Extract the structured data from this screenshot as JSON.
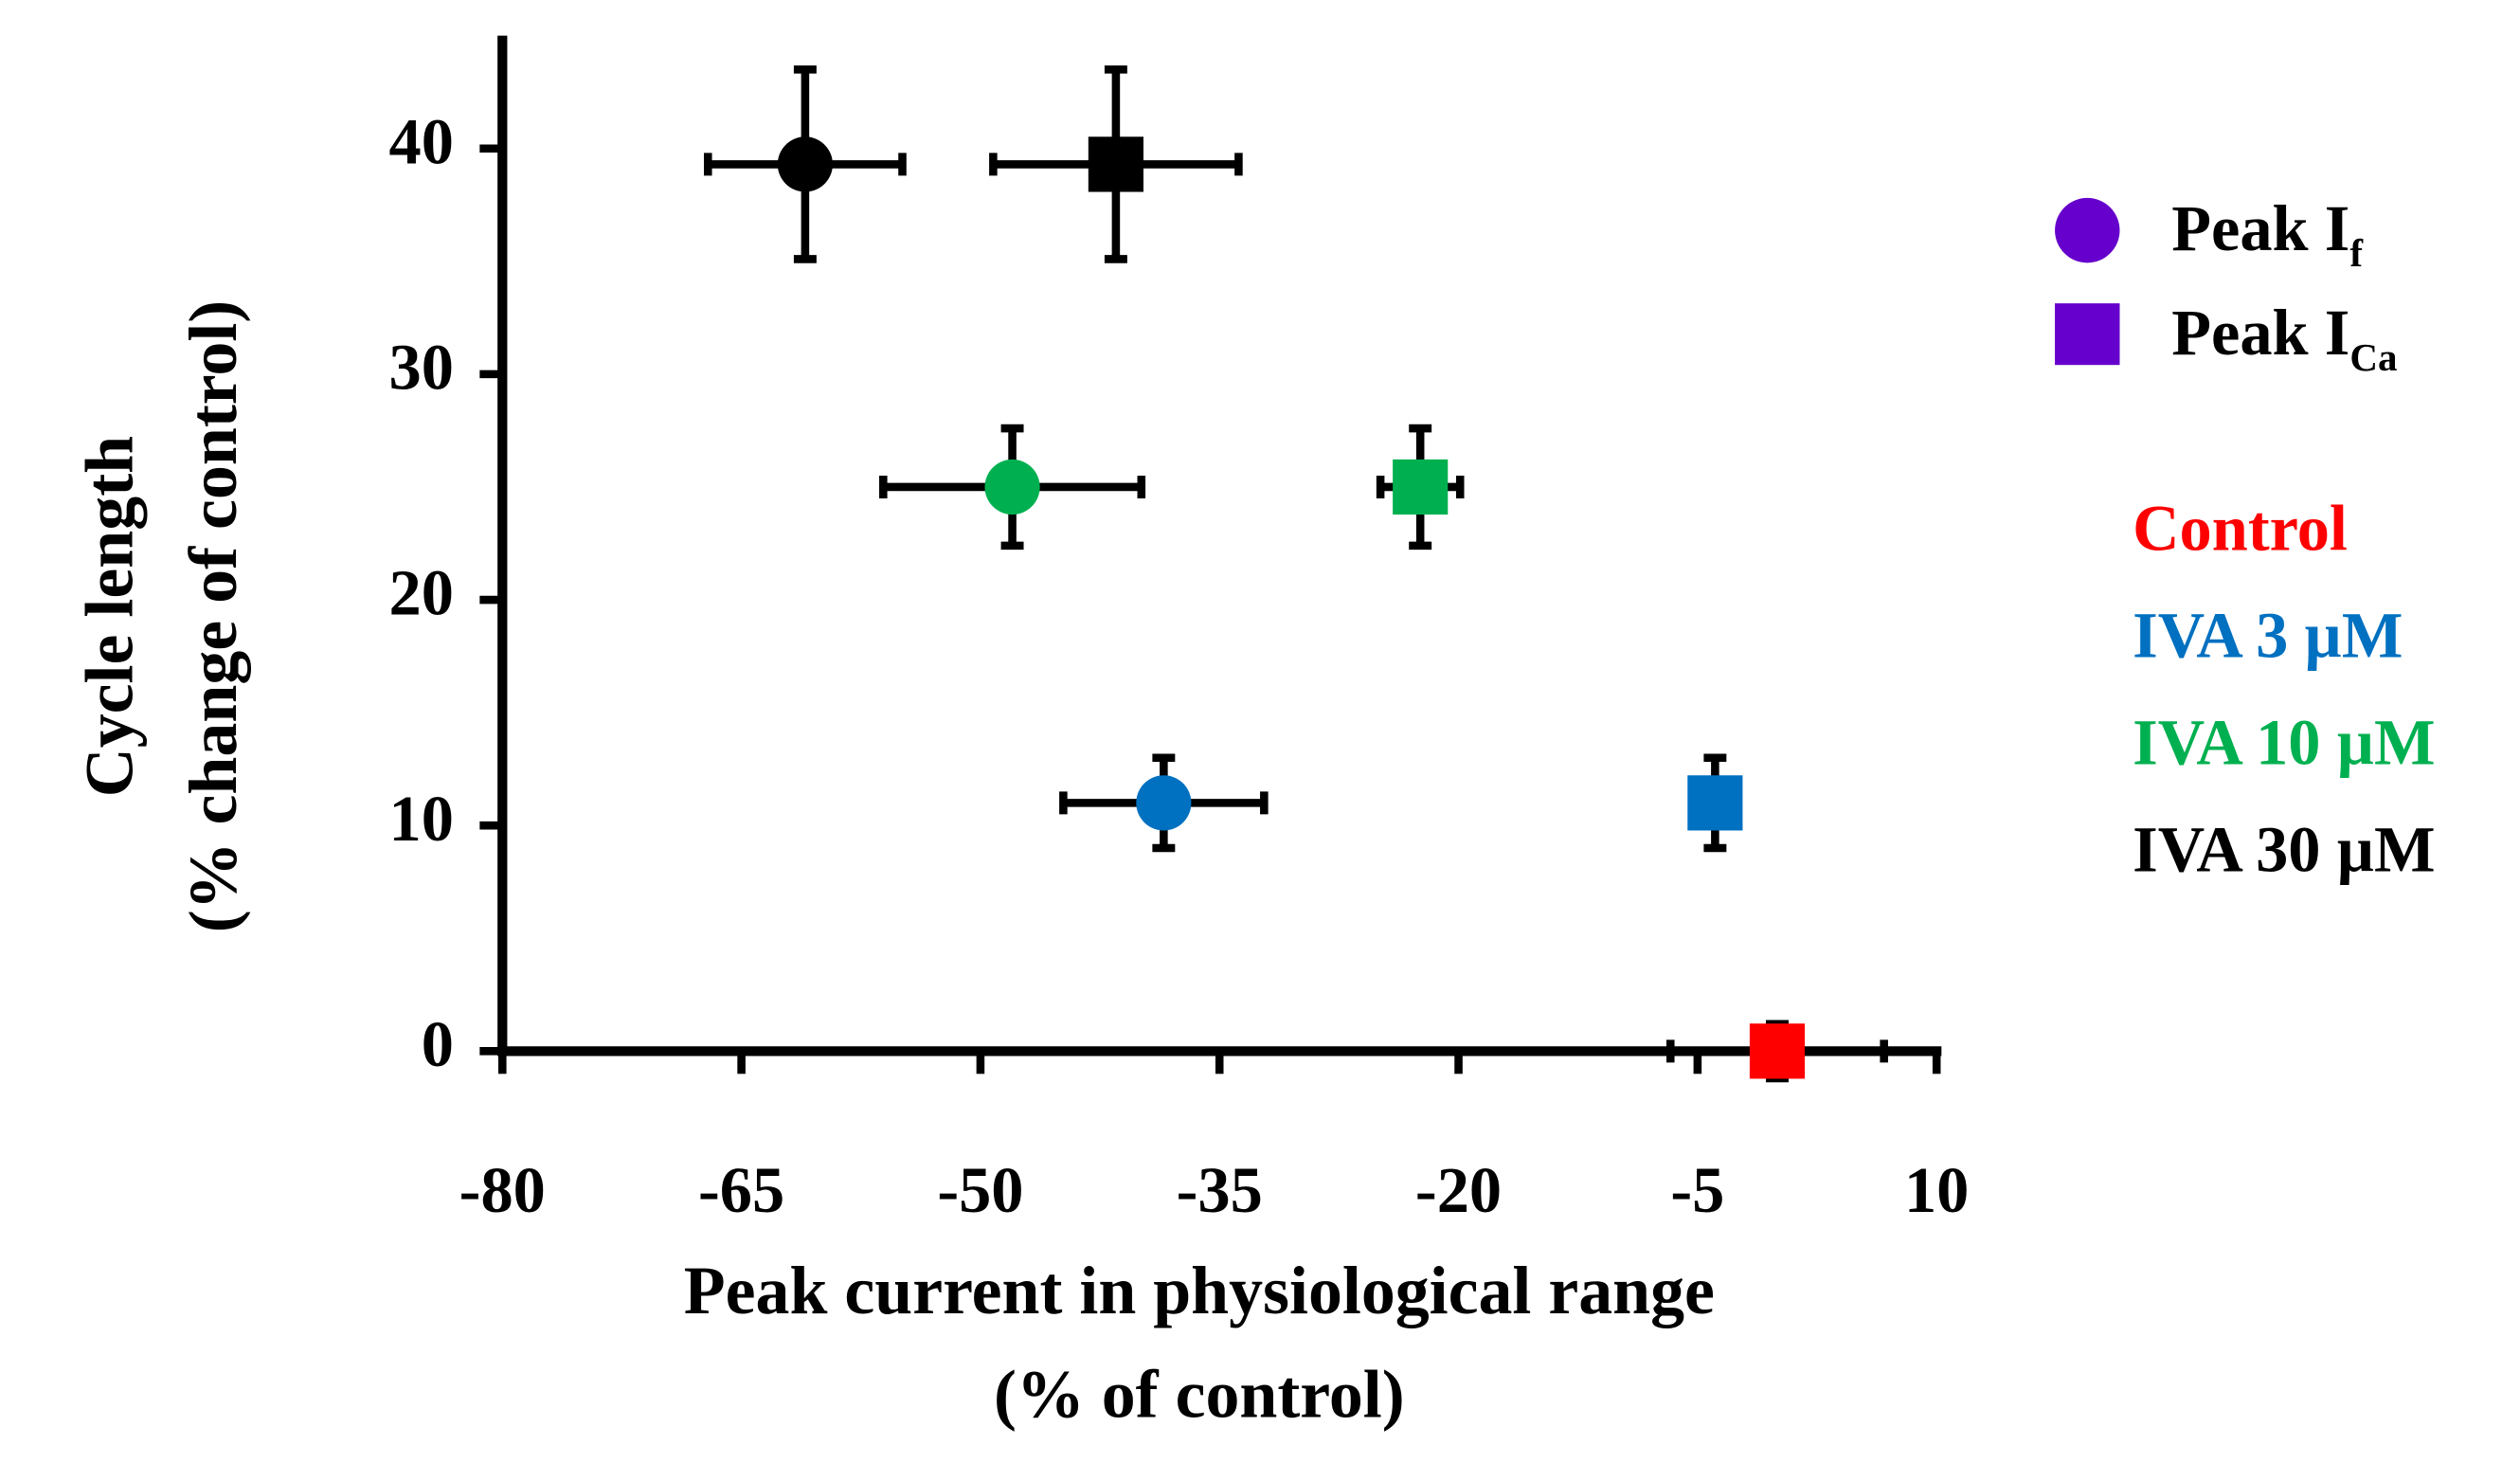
{
  "chart_data": {
    "type": "scatter",
    "x_label": [
      "Peak  current in physiological range",
      "(% of control)"
    ],
    "y_label": [
      "Cycle length",
      "(% change of control)"
    ],
    "xlim": [
      -80,
      10
    ],
    "xticks": [
      -80,
      -65,
      -50,
      -35,
      -20,
      -5,
      10
    ],
    "ylim": [
      0,
      45
    ],
    "yticks": [
      0,
      10,
      20,
      30,
      40
    ],
    "groups": [
      {
        "name": "Control",
        "color": "#ff0000"
      },
      {
        "name": "IVA 3 µM",
        "color": "#0070c0"
      },
      {
        "name": "IVA 10 µM",
        "color": "#00b050"
      },
      {
        "name": "IVA 30 µM",
        "color": "#000000"
      }
    ],
    "series": [
      {
        "name": "Peak I",
        "name_sub": "f",
        "marker": "circle",
        "color": "#6600cc",
        "points": [
          {
            "group": 1,
            "x": -38.5,
            "y": 11,
            "xerr": 6.3,
            "yerr": 2
          },
          {
            "group": 2,
            "x": -48,
            "y": 25,
            "xerr": 8.1,
            "yerr": 2.6
          },
          {
            "group": 3,
            "x": -61,
            "y": 39.3,
            "xerr": 6.1,
            "yerr": 4.2
          }
        ]
      },
      {
        "name": "Peak I",
        "name_sub": "Ca",
        "marker": "square",
        "color": "#6600cc",
        "points": [
          {
            "group": 0,
            "x": 0,
            "y": 0,
            "xerr": 6.7,
            "yerr": 1.2
          },
          {
            "group": 1,
            "x": -3.9,
            "y": 11,
            "xerr": 0,
            "yerr": 2
          },
          {
            "group": 2,
            "x": -22.4,
            "y": 25,
            "xerr": 2.5,
            "yerr": 2.6
          },
          {
            "group": 3,
            "x": -41.5,
            "y": 39.3,
            "xerr": 7.7,
            "yerr": 4.2
          }
        ]
      }
    ]
  }
}
